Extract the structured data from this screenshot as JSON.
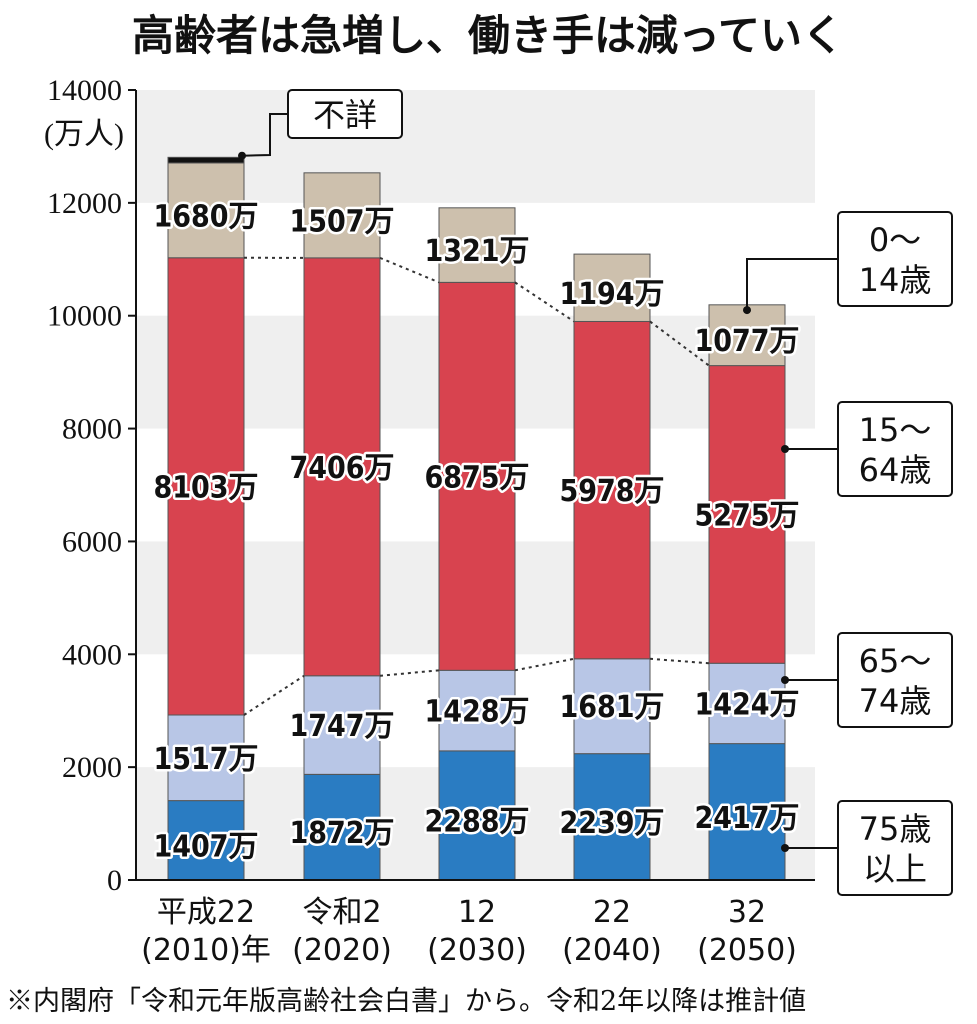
{
  "title": "高齢者は急増し、働き手は減っていく",
  "note": "※内閣府「令和元年版高齢社会白書」から。令和2年以降は推計値",
  "colors": {
    "age75plus": "#2a7cc2",
    "age65to74": "#b8c6e6",
    "age15to64": "#d8434f",
    "age0to14": "#cdc0ad",
    "unknown": "#111111",
    "band": "#efefef"
  },
  "chart_data": {
    "type": "bar",
    "stacked": true,
    "title": "高齢者は急増し、働き手は減っていく",
    "ylabel": "(万人)",
    "ylim": [
      0,
      14000
    ],
    "yticks": [
      "0",
      "2000",
      "4000",
      "6000",
      "8000",
      "10000",
      "12000",
      "14000"
    ],
    "categories": [
      {
        "line1": "平成22",
        "line2": "(2010)年"
      },
      {
        "line1": "令和2",
        "line2": "(2020)"
      },
      {
        "line1": "12",
        "line2": "(2030)"
      },
      {
        "line1": "22",
        "line2": "(2040)"
      },
      {
        "line1": "32",
        "line2": "(2050)"
      }
    ],
    "series": [
      {
        "key": "age75plus",
        "name": "75歳以上",
        "values": [
          1407,
          1872,
          2288,
          2239,
          2417
        ],
        "labels": [
          "1407万",
          "1872万",
          "2288万",
          "2239万",
          "2417万"
        ]
      },
      {
        "key": "age65to74",
        "name": "65〜74歳",
        "values": [
          1517,
          1747,
          1428,
          1681,
          1424
        ],
        "labels": [
          "1517万",
          "1747万",
          "1428万",
          "1681万",
          "1424万"
        ]
      },
      {
        "key": "age15to64",
        "name": "15〜64歳",
        "values": [
          8103,
          7406,
          6875,
          5978,
          5275
        ],
        "labels": [
          "8103万",
          "7406万",
          "6875万",
          "5978万",
          "5275万"
        ]
      },
      {
        "key": "age0to14",
        "name": "0〜14歳",
        "values": [
          1680,
          1507,
          1321,
          1194,
          1077
        ],
        "labels": [
          "1680万",
          "1507万",
          "1321万",
          "1194万",
          "1077万"
        ]
      },
      {
        "key": "unknown",
        "name": "不詳",
        "values": [
          100,
          0,
          0,
          0,
          0
        ],
        "labels": [
          "",
          "",
          "",
          "",
          ""
        ]
      }
    ],
    "legend": [
      {
        "key": "unknown",
        "lines": [
          "不詳"
        ]
      },
      {
        "key": "age0to14",
        "lines": [
          "0〜",
          "14歳"
        ]
      },
      {
        "key": "age15to64",
        "lines": [
          "15〜",
          "64歳"
        ]
      },
      {
        "key": "age65to74",
        "lines": [
          "65〜",
          "74歳"
        ]
      },
      {
        "key": "age75plus",
        "lines": [
          "75歳",
          "以上"
        ]
      }
    ]
  }
}
